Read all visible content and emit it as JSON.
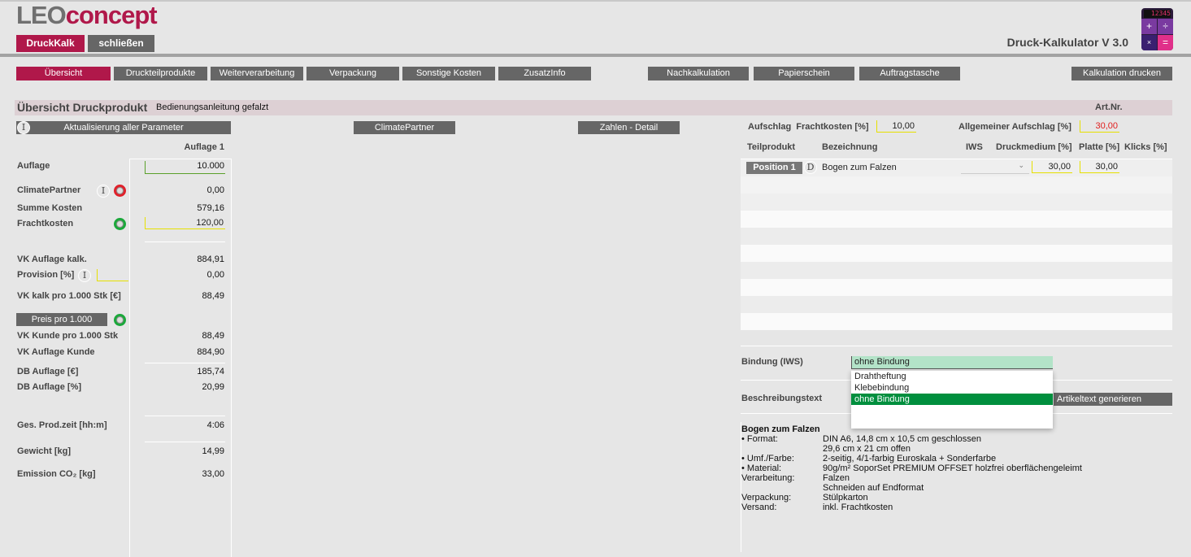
{
  "header": {
    "logo_part1": "LEO",
    "logo_part2": "concept",
    "app_title": "Druck-Kalkulator V 3.0",
    "calc_display": "12345",
    "buttons": {
      "druckkalk": "DruckKalk",
      "close": "schließen"
    }
  },
  "nav": {
    "tabs": [
      "Übersicht",
      "Druckteilprodukte",
      "Weiterverarbeitung",
      "Verpackung",
      "Sonstige Kosten",
      "ZusatzInfo",
      "Nachkalkulation",
      "Papierschein",
      "Auftragstasche",
      "Kalkulation drucken"
    ],
    "active": "Übersicht"
  },
  "band": {
    "title": "Übersicht Druckprodukt",
    "subtitle": "Bedienungsanleitung gefalzt",
    "artnr_label": "Art.Nr."
  },
  "actions": {
    "update": "Aktualisierung aller Parameter",
    "climate": "ClimatePartner",
    "details": "Zahlen - Detail",
    "price_per_1000": "Preis pro 1.000",
    "generate_text": "Artikeltext generieren"
  },
  "summary": {
    "column_header": "Auflage 1",
    "rows": [
      {
        "label": "Auflage",
        "value": "10.000"
      },
      {
        "label": "ClimatePartner",
        "value": "0,00"
      },
      {
        "label": "Summe Kosten",
        "value": "579,16"
      },
      {
        "label": "Frachtkosten",
        "value": "120,00"
      },
      {
        "label": "VK Auflage kalk.",
        "value": "884,91"
      },
      {
        "label": "Provision [%]",
        "value": "0,00"
      },
      {
        "label": "VK kalk pro 1.000 Stk [€]",
        "value": "88,49"
      },
      {
        "label": "VK Kunde pro 1.000 Stk",
        "value": "88,49"
      },
      {
        "label": "VK Auflage Kunde",
        "value": "884,90"
      },
      {
        "label": "DB Auflage [€]",
        "value": "185,74"
      },
      {
        "label": "DB Auflage [%]",
        "value": "20,99"
      },
      {
        "label": "Ges. Prod.zeit [hh:m]",
        "value": "4:06"
      },
      {
        "label": "Gewicht [kg]",
        "value": "14,99"
      },
      {
        "label": "Emission CO₂ [kg]",
        "value": "33,00"
      }
    ]
  },
  "surcharge": {
    "freight_label": "Aufschlag  Frachtkosten [%]",
    "freight_value": "10,00",
    "general_label": "Allgemeiner Aufschlag [%]",
    "general_value": "30,00",
    "general_color": "#e02020"
  },
  "parts": {
    "headers": [
      "Teilprodukt",
      "Bezeichnung",
      "IWS",
      "Druckmedium [%]",
      "Platte [%]",
      "Klicks [%]"
    ],
    "rows": [
      {
        "position": "Position 1",
        "badge": "D",
        "name": "Bogen zum Falzen",
        "iws": "",
        "druckmedium": "30,00",
        "platte": "30,00"
      }
    ]
  },
  "binding": {
    "label": "Bindung (IWS)",
    "value": "ohne Bindung",
    "options": [
      "Drahtheftung",
      "Klebebindung",
      "ohne Bindung"
    ],
    "selected": "ohne Bindung"
  },
  "description": {
    "label": "Beschreibungstext",
    "title": "Bogen zum Falzen",
    "lines": [
      [
        "• Format:",
        "DIN A6, 14,8 cm x 10,5 cm geschlossen"
      ],
      [
        "",
        "29,6 cm x 21 cm offen"
      ],
      [
        "• Umf./Farbe:",
        "2-seitig, 4/1-farbig Euroskala + Sonderfarbe"
      ],
      [
        "• Material:",
        "90g/m² SoporSet PREMIUM OFFSET holzfrei oberflächengeleimt"
      ],
      [
        "Verarbeitung:",
        "Falzen"
      ],
      [
        "",
        "Schneiden auf Endformat"
      ],
      [
        "Verpackung:",
        "Stülpkarton"
      ],
      [
        "Versand:",
        "inkl. Frachtkosten"
      ]
    ]
  },
  "colors": {
    "accent": "#b0184a",
    "button": "#666666",
    "selected": "#008f3e",
    "binding_field": "#b3e3c8"
  }
}
